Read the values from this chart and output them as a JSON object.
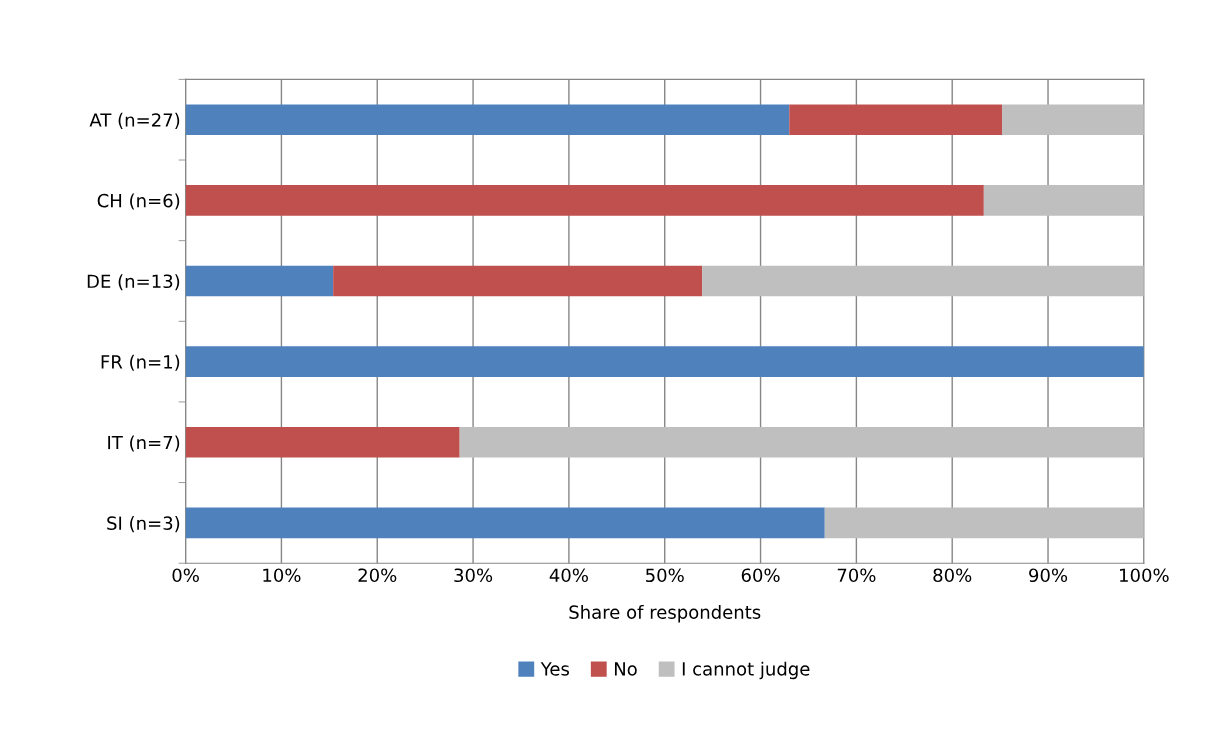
{
  "chart_data": {
    "type": "bar",
    "orientation": "horizontal",
    "stacked": true,
    "xlabel": "Share of respondents",
    "categories": [
      "AT (n=27)",
      "CH (n=6)",
      "DE (n=13)",
      "FR (n=1)",
      "IT (n=7)",
      "SI (n=3)"
    ],
    "series": [
      {
        "name": "Yes",
        "color": "#4f81bd",
        "values": [
          63.0,
          0,
          15.4,
          100,
          0,
          66.7
        ]
      },
      {
        "name": "No",
        "color": "#c0504d",
        "values": [
          22.2,
          83.3,
          38.5,
          0,
          28.6,
          0
        ]
      },
      {
        "name": "I cannot judge",
        "color": "#bfbfbf",
        "values": [
          14.8,
          16.7,
          46.1,
          0,
          71.4,
          33.3
        ]
      }
    ],
    "xlim": [
      0,
      100
    ],
    "xticks": [
      {
        "value": 0,
        "label": "0%"
      },
      {
        "value": 10,
        "label": "10%"
      },
      {
        "value": 20,
        "label": "20%"
      },
      {
        "value": 30,
        "label": "30%"
      },
      {
        "value": 40,
        "label": "40%"
      },
      {
        "value": 50,
        "label": "50%"
      },
      {
        "value": 60,
        "label": "60%"
      },
      {
        "value": 70,
        "label": "70%"
      },
      {
        "value": 80,
        "label": "80%"
      },
      {
        "value": 90,
        "label": "90%"
      },
      {
        "value": 100,
        "label": "100%"
      }
    ],
    "grid": "x",
    "legend": "bottom"
  }
}
